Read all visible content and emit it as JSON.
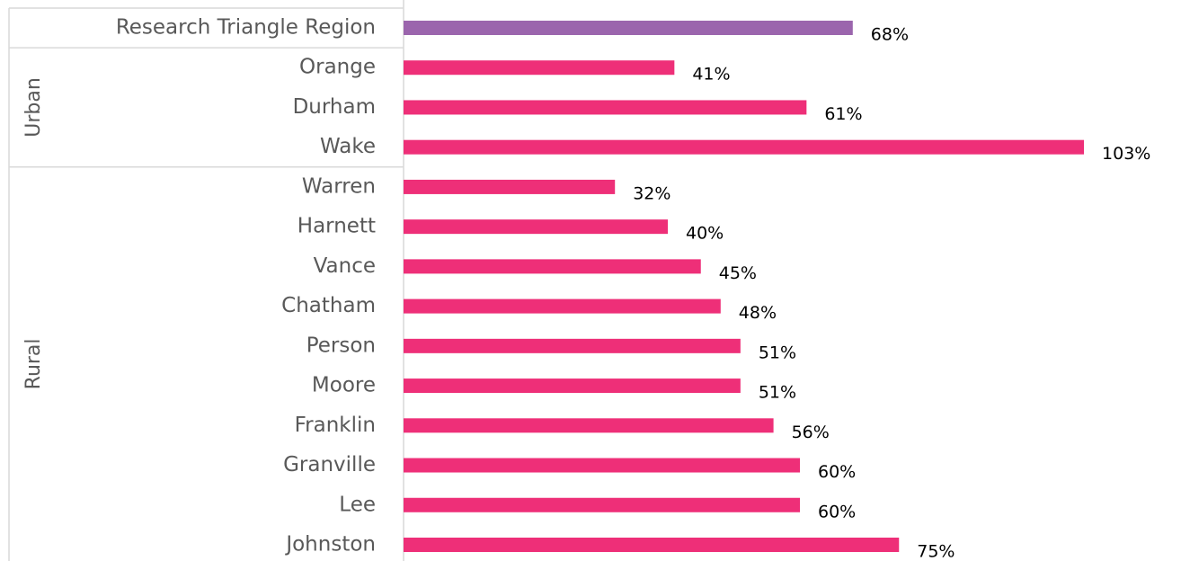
{
  "chart_data": {
    "type": "bar",
    "orientation": "horizontal",
    "categories": [
      "Research Triangle Region",
      "Orange",
      "Durham",
      "Wake",
      "Warren",
      "Harnett",
      "Vance",
      "Chatham",
      "Person",
      "Moore",
      "Franklin",
      "Granville",
      "Lee",
      "Johnston"
    ],
    "values": [
      68,
      41,
      61,
      103,
      32,
      40,
      45,
      48,
      51,
      51,
      56,
      60,
      60,
      75
    ],
    "value_labels": [
      "68%",
      "41%",
      "61%",
      "103%",
      "32%",
      "40%",
      "45%",
      "48%",
      "51%",
      "51%",
      "56%",
      "60%",
      "60%",
      "75%"
    ],
    "colors": [
      "#9b65ad",
      "#ee2f78",
      "#ee2f78",
      "#ee2f78",
      "#ee2f78",
      "#ee2f78",
      "#ee2f78",
      "#ee2f78",
      "#ee2f78",
      "#ee2f78",
      "#ee2f78",
      "#ee2f78",
      "#ee2f78",
      "#ee2f78"
    ],
    "groups": [
      {
        "label": "Urban",
        "count": 3
      },
      {
        "label": "Rural",
        "count": 10
      }
    ]
  }
}
